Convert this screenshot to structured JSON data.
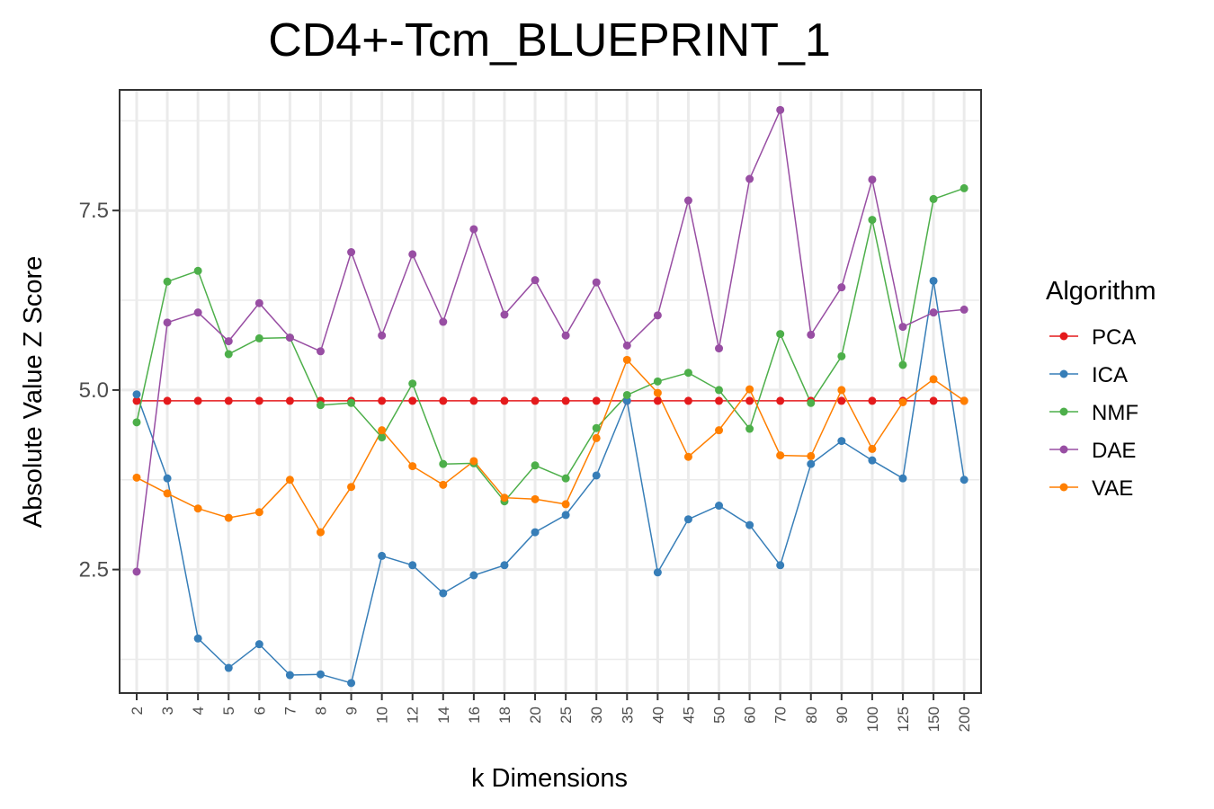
{
  "chart_data": {
    "type": "line",
    "title": "CD4+-Tcm_BLUEPRINT_1",
    "xlabel": "k Dimensions",
    "ylabel": "Absolute Value Z Score",
    "categories": [
      "2",
      "3",
      "4",
      "5",
      "6",
      "7",
      "8",
      "9",
      "10",
      "12",
      "14",
      "16",
      "18",
      "20",
      "25",
      "30",
      "35",
      "40",
      "45",
      "50",
      "60",
      "70",
      "80",
      "90",
      "100",
      "125",
      "150",
      "200"
    ],
    "ylim": [
      0.78,
      9.18
    ],
    "yticks": [
      2.5,
      5.0,
      7.5
    ],
    "ytick_labels": [
      "2.5",
      "5.0",
      "7.5"
    ],
    "grid": true,
    "legend": {
      "title": "Algorithm",
      "position": "right"
    },
    "series": [
      {
        "name": "PCA",
        "color": "#e41a1c",
        "values": [
          4.85,
          4.85,
          4.85,
          4.85,
          4.85,
          4.85,
          4.85,
          4.85,
          4.85,
          4.85,
          4.85,
          4.85,
          4.85,
          4.85,
          4.85,
          4.85,
          4.85,
          4.85,
          4.85,
          4.85,
          4.85,
          4.85,
          4.85,
          4.85,
          4.85,
          4.85,
          4.85,
          4.85
        ]
      },
      {
        "name": "ICA",
        "color": "#377eb8",
        "values": [
          4.94,
          3.77,
          1.54,
          1.13,
          1.46,
          1.03,
          1.04,
          0.92,
          2.69,
          2.56,
          2.17,
          2.42,
          2.56,
          3.02,
          3.26,
          3.81,
          4.85,
          2.46,
          3.2,
          3.39,
          3.12,
          2.56,
          3.97,
          4.29,
          4.02,
          3.77,
          6.52,
          3.75
        ]
      },
      {
        "name": "NMF",
        "color": "#4daf4a",
        "values": [
          4.55,
          6.51,
          6.66,
          5.5,
          5.72,
          5.73,
          4.79,
          4.82,
          4.34,
          5.09,
          3.97,
          3.98,
          3.45,
          3.95,
          3.77,
          4.47,
          4.93,
          5.12,
          5.24,
          5.0,
          4.46,
          5.78,
          4.82,
          5.47,
          7.37,
          5.35,
          7.66,
          7.81
        ]
      },
      {
        "name": "DAE",
        "color": "#984ea3",
        "values": [
          2.47,
          5.94,
          6.08,
          5.68,
          6.21,
          5.73,
          5.54,
          6.92,
          5.76,
          6.89,
          5.95,
          7.24,
          6.05,
          6.53,
          5.76,
          6.5,
          5.62,
          6.04,
          7.64,
          5.58,
          7.94,
          8.9,
          5.77,
          6.43,
          7.93,
          5.88,
          6.08,
          6.12
        ]
      },
      {
        "name": "VAE",
        "color": "#ff7f00",
        "values": [
          3.78,
          3.56,
          3.35,
          3.22,
          3.3,
          3.75,
          3.02,
          3.65,
          4.44,
          3.94,
          3.68,
          4.01,
          3.5,
          3.48,
          3.41,
          4.33,
          5.42,
          4.96,
          4.07,
          4.44,
          5.01,
          4.09,
          4.08,
          5.0,
          4.18,
          4.83,
          5.15,
          4.85
        ]
      }
    ]
  }
}
